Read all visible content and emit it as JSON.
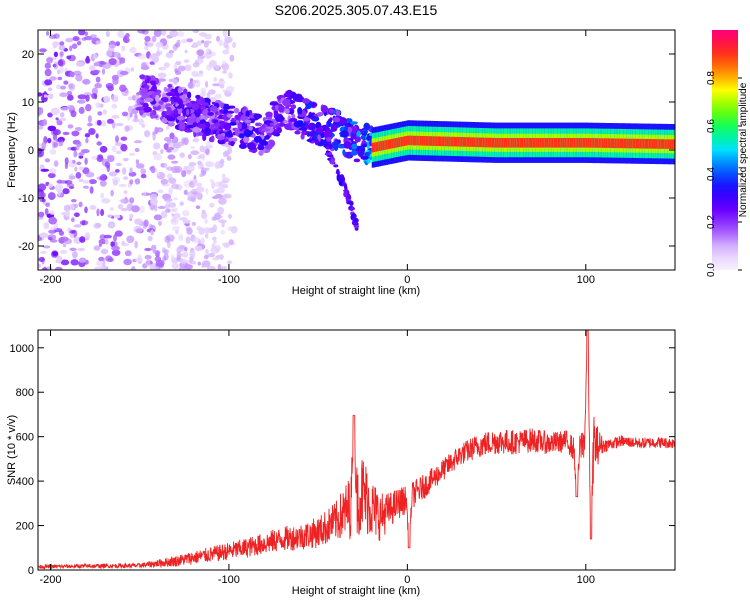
{
  "title": "S206.2025.305.07.43.E15",
  "colors": {
    "snr_line": "#ee2222",
    "frame": "#000000",
    "background": "#ffffff"
  },
  "chart_data": [
    {
      "type": "heatmap",
      "name": "spectrogram",
      "xlabel": "Height of straight line (km)",
      "ylabel": "Frequency (Hz)",
      "xlim": [
        -207,
        150
      ],
      "ylim": [
        -25,
        25
      ],
      "xticks": [
        -200,
        -100,
        0,
        100
      ],
      "yticks": [
        -20,
        -10,
        0,
        10,
        20
      ],
      "colorbar": {
        "label": "Normalized spectral amplitude",
        "range": [
          0,
          1
        ],
        "ticks": [
          "0.0",
          "0.2",
          "0.4",
          "0.6",
          "0.8"
        ],
        "tick_values": [
          0.0,
          0.2,
          0.4,
          0.6,
          0.8
        ],
        "colormap": [
          "#f8f0ff",
          "#e0c8ff",
          "#a050ff",
          "#6a00ff",
          "#2200ff",
          "#0060ff",
          "#00e0ff",
          "#00ff70",
          "#70ff00",
          "#ffff00",
          "#ff8000",
          "#ff2020",
          "#ff0080"
        ]
      },
      "ridge": {
        "description_points": [
          {
            "x": -150,
            "f": 12,
            "amp": 0.25
          },
          {
            "x": -130,
            "f": 9,
            "amp": 0.3
          },
          {
            "x": -110,
            "f": 6,
            "amp": 0.32
          },
          {
            "x": -95,
            "f": 5,
            "amp": 0.35
          },
          {
            "x": -80,
            "f": 3,
            "amp": 0.33
          },
          {
            "x": -70,
            "f": 9,
            "amp": 0.3
          },
          {
            "x": -55,
            "f": 6,
            "amp": 0.38
          },
          {
            "x": -40,
            "f": 4,
            "amp": 0.42
          },
          {
            "x": -30,
            "f": 2,
            "amp": 0.45
          },
          {
            "x": -20,
            "f": 0.5,
            "amp": 0.55
          },
          {
            "x": 0,
            "f": 2,
            "amp": 0.9
          },
          {
            "x": 50,
            "f": 1.5,
            "amp": 0.95
          },
          {
            "x": 100,
            "f": 1.5,
            "amp": 0.95
          },
          {
            "x": 150,
            "f": 1.2,
            "amp": 0.9
          }
        ],
        "branch_points": [
          {
            "x": -45,
            "f": 0,
            "amp": 0.3
          },
          {
            "x": -35,
            "f": -8,
            "amp": 0.3
          },
          {
            "x": -28,
            "f": -16,
            "amp": 0.25
          }
        ]
      }
    },
    {
      "type": "line",
      "name": "snr",
      "xlabel": "Height of straight line (km)",
      "ylabel": "SNR (10 * v/v)",
      "xlim": [
        -207,
        150
      ],
      "ylim": [
        0,
        1080
      ],
      "xticks": [
        -200,
        -100,
        0,
        100
      ],
      "yticks": [
        0,
        200,
        400,
        600,
        800,
        1000
      ],
      "series": [
        {
          "name": "SNR",
          "envelope_x": [
            -207,
            -150,
            -130,
            -110,
            -90,
            -70,
            -60,
            -50,
            -40,
            -30,
            -25,
            -20,
            -15,
            -10,
            -5,
            0,
            10,
            20,
            30,
            40,
            50,
            60,
            70,
            80,
            90,
            95,
            100,
            103,
            105,
            110,
            120,
            130,
            140,
            150
          ],
          "envelope_y": [
            15,
            20,
            40,
            70,
            100,
            140,
            150,
            170,
            220,
            300,
            350,
            280,
            240,
            270,
            300,
            320,
            380,
            450,
            520,
            560,
            580,
            575,
            585,
            570,
            580,
            520,
            600,
            750,
            560,
            560,
            580,
            570,
            575,
            570
          ],
          "noise": [
            8,
            10,
            25,
            35,
            45,
            55,
            60,
            70,
            90,
            160,
            180,
            140,
            110,
            80,
            70,
            65,
            55,
            50,
            50,
            55,
            60,
            55,
            55,
            50,
            50,
            60,
            90,
            250,
            120,
            30,
            25,
            25,
            25,
            25
          ]
        }
      ],
      "features": [
        {
          "x": -30,
          "y": 695
        },
        {
          "x": 101,
          "y": 1080
        },
        {
          "x": 103,
          "y": 140
        },
        {
          "x": 95,
          "y": 330
        },
        {
          "x": 1,
          "y": 100
        }
      ]
    }
  ]
}
